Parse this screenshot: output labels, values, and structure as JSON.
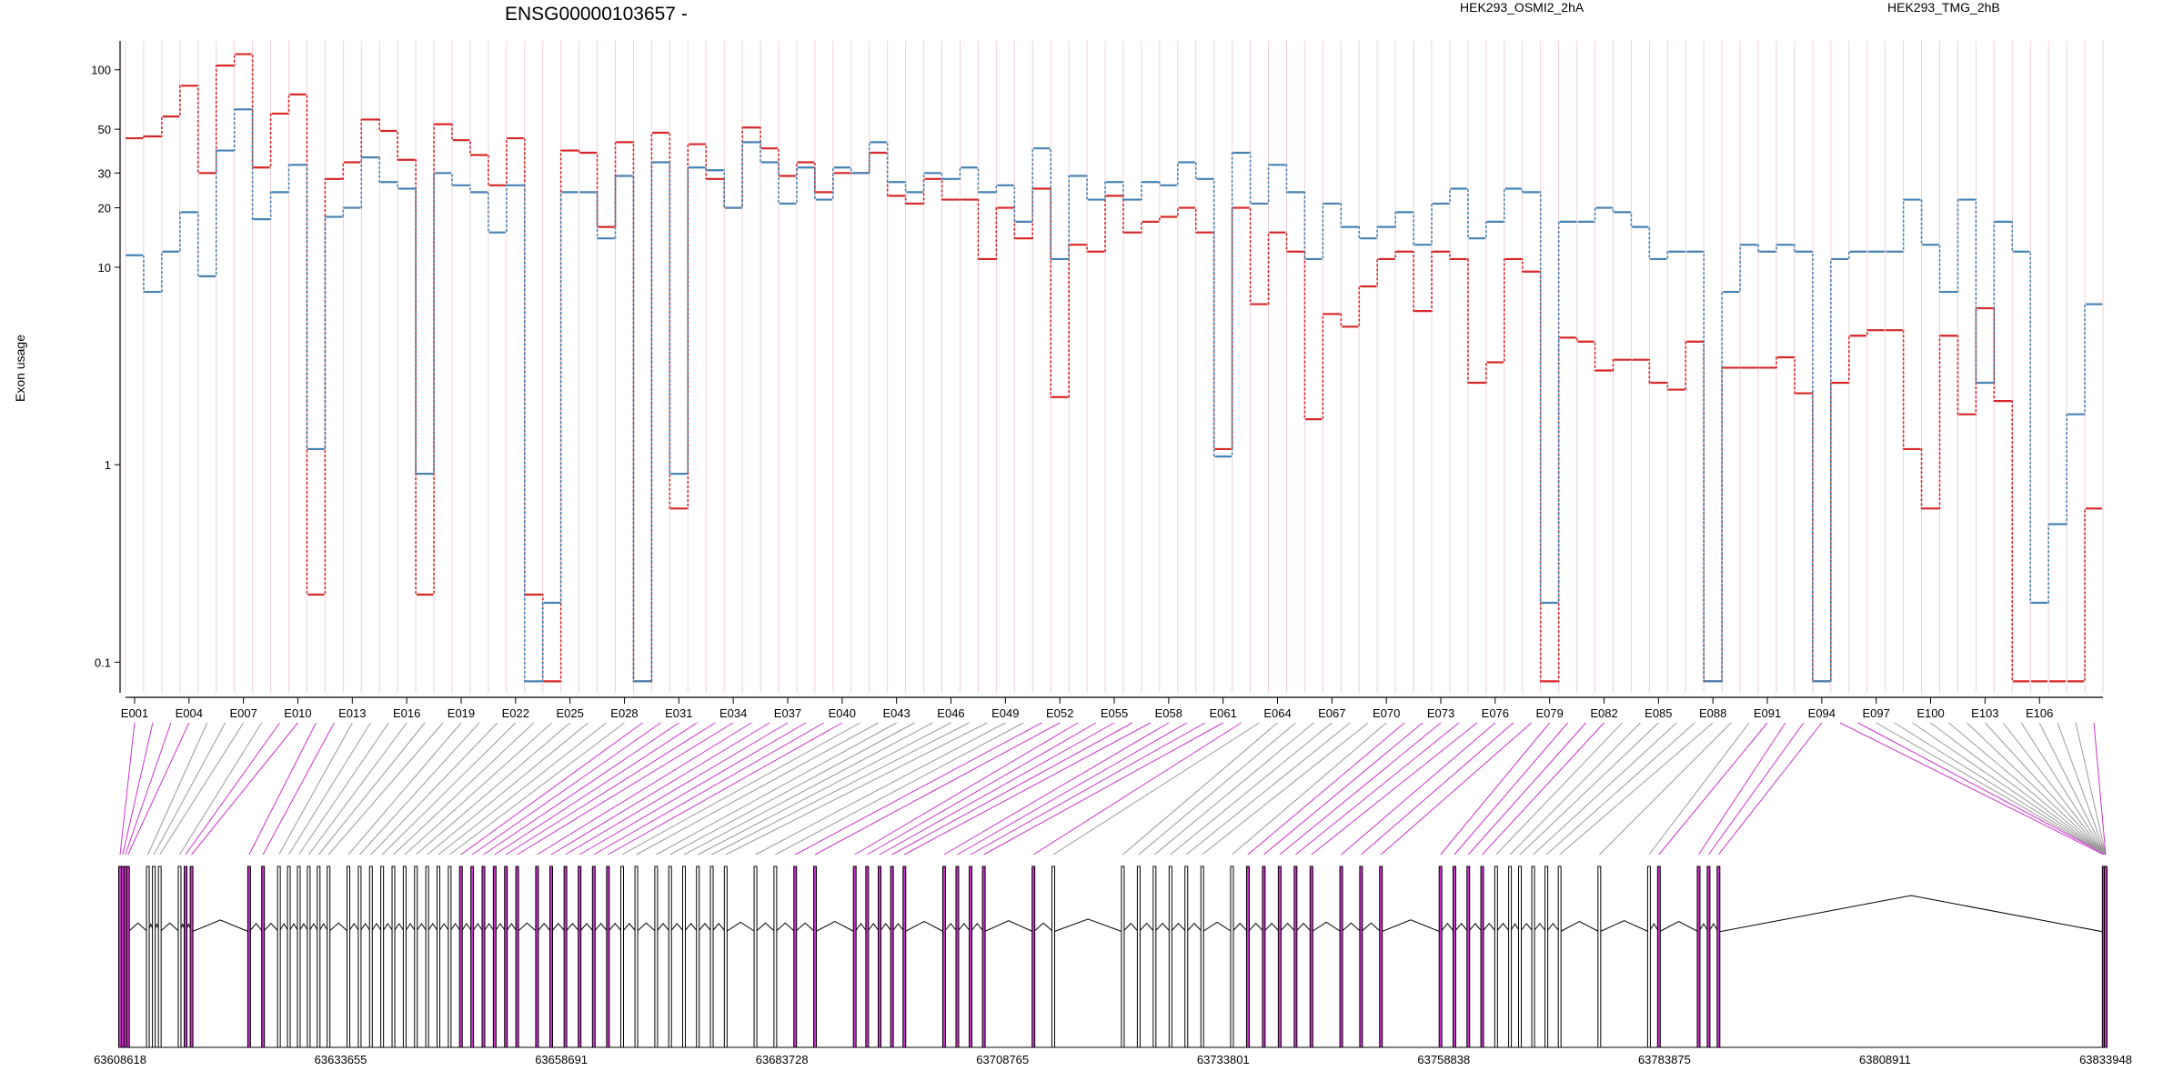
{
  "chart_data": {
    "type": "line",
    "title": "ENSG00000103657 -",
    "ylabel": "Exon usage",
    "yscale": "log",
    "ylim": [
      0.07,
      140
    ],
    "y_ticks": [
      0.1,
      1,
      10,
      20,
      30,
      50,
      100
    ],
    "y_tick_labels": [
      "0.1",
      "1",
      "10",
      "20",
      "30",
      "50",
      "100"
    ],
    "series": [
      {
        "name": "HEK293_OSMI2_2hA",
        "color": "#d62728",
        "values": [
          45,
          46,
          58,
          83,
          30,
          105,
          120,
          32,
          60,
          75,
          0.22,
          28,
          34,
          56,
          49,
          35,
          0.22,
          53,
          44,
          37,
          26,
          45,
          0.22,
          0.08,
          39,
          38,
          16,
          43,
          0.08,
          48,
          0.6,
          42,
          28,
          20,
          51,
          40,
          29,
          34,
          24,
          30,
          30,
          38,
          23,
          21,
          28,
          22,
          22,
          11,
          20,
          14,
          25,
          2.2,
          13,
          12,
          23,
          15,
          17,
          18,
          20,
          15,
          1.2,
          20,
          6.5,
          15,
          12,
          1.7,
          5.8,
          5,
          8,
          11,
          12,
          6,
          12,
          11,
          2.6,
          3.3,
          11,
          9.5,
          0.08,
          4.4,
          4.2,
          3,
          3.4,
          3.4,
          2.6,
          2.4,
          4.2,
          0.08,
          3.1,
          3.1,
          3.1,
          3.5,
          2.3,
          0.08,
          2.6,
          4.5,
          4.8,
          4.8,
          1.2,
          0.6,
          4.5,
          1.8,
          6.2,
          2.1,
          0.08,
          0.08,
          0.08,
          0.08,
          0.6
        ]
      },
      {
        "name": "HEK293_TMG_2hB",
        "color": "#4682b4",
        "values": [
          11.5,
          7.5,
          12,
          19,
          9,
          39,
          63,
          17.5,
          24,
          33,
          1.2,
          18,
          20,
          36,
          27,
          25,
          0.9,
          30,
          26,
          24,
          15,
          26,
          0.08,
          0.2,
          24,
          24,
          14,
          29,
          0.08,
          34,
          0.9,
          32,
          31,
          20,
          43,
          34,
          21,
          32,
          22,
          32,
          30,
          43,
          27,
          24,
          30,
          28,
          32,
          24,
          26,
          17,
          40,
          11,
          29,
          22,
          27,
          22,
          27,
          26,
          34,
          28,
          1.1,
          38,
          21,
          33,
          24,
          11,
          21,
          16,
          14,
          16,
          19,
          13,
          21,
          25,
          14,
          17,
          25,
          24,
          0.2,
          17,
          17,
          20,
          19,
          16,
          11,
          12,
          12,
          0.08,
          7.5,
          13,
          12,
          13,
          12,
          0.08,
          11,
          12,
          12,
          12,
          22,
          13,
          7.5,
          22,
          2.6,
          17,
          12,
          0.2,
          0.5,
          1.8,
          6.5
        ]
      }
    ],
    "exon_label_list": [
      "E001",
      "E004",
      "E007",
      "E010",
      "E013",
      "E016",
      "E019",
      "E022",
      "E025",
      "E028",
      "E031",
      "E034",
      "E037",
      "E040",
      "E043",
      "E046",
      "E049",
      "E052",
      "E055",
      "E058",
      "E061",
      "E064",
      "E067",
      "E070",
      "E073",
      "E076",
      "E079",
      "E082",
      "E085",
      "E088",
      "E091",
      "E094",
      "E097",
      "E100",
      "E103",
      "E106"
    ],
    "genomic_ticks": [
      "63608618",
      "63633655",
      "63658691",
      "63683728",
      "63708765",
      "63733801",
      "63758838",
      "63783875",
      "63808911",
      "63833948"
    ],
    "genomic_range": [
      63608618,
      63833948
    ],
    "highlight_color": "#cc33cc"
  }
}
